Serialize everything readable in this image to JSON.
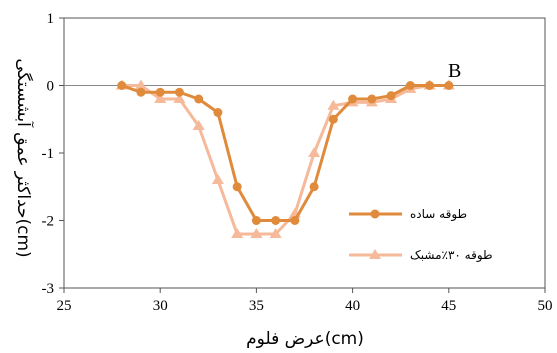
{
  "chart_data": {
    "type": "line",
    "panel_label": "B",
    "xlabel": "عرض فلوم(cm)",
    "ylabel": "حداکثر عمق آبشستگی(cm)",
    "xlim": [
      25,
      50
    ],
    "ylim": [
      -3,
      1
    ],
    "xticks": [
      "25",
      "30",
      "35",
      "40",
      "45",
      "50"
    ],
    "yticks": [
      "1",
      "0",
      "-1",
      "-2",
      "-3"
    ],
    "grid": false,
    "legend_position": "bottom-right",
    "series": [
      {
        "name": "طوقه ساده",
        "color": "#e08a3c",
        "marker": "circle",
        "x": [
          28,
          29,
          30,
          31,
          32,
          33,
          34,
          35,
          36,
          37,
          38,
          39,
          40,
          41,
          42,
          43,
          44,
          45
        ],
        "y": [
          0,
          -0.1,
          -0.1,
          -0.1,
          -0.2,
          -0.4,
          -1.5,
          -2,
          -2,
          -2,
          -1.5,
          -0.5,
          -0.2,
          -0.2,
          -0.15,
          0,
          0,
          0
        ]
      },
      {
        "name": "طوقه ۳۰٪مشبک",
        "color": "#f6b99a",
        "marker": "triangle",
        "x": [
          28,
          29,
          30,
          31,
          32,
          33,
          34,
          35,
          36,
          37,
          38,
          39,
          40,
          41,
          42,
          43,
          44,
          45
        ],
        "y": [
          0,
          0,
          -0.2,
          -0.2,
          -0.6,
          -1.4,
          -2.2,
          -2.2,
          -2.2,
          -1.9,
          -1,
          -0.3,
          -0.25,
          -0.25,
          -0.2,
          -0.05,
          0,
          0
        ]
      }
    ]
  }
}
